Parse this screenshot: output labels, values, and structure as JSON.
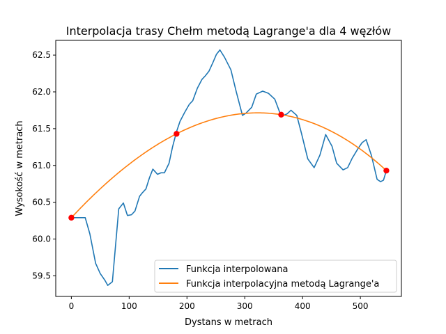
{
  "chart_data": {
    "type": "line",
    "title": "Interpolacja trasy Chełm metodą Lagrange'a dla 4 węzłów",
    "xlabel": "Dystans w metrach",
    "ylabel": "Wysokość w metrach",
    "xlim": [
      -27,
      571
    ],
    "ylim": [
      59.22,
      62.7
    ],
    "x_ticks": [
      0,
      100,
      200,
      300,
      400,
      500
    ],
    "y_ticks": [
      59.5,
      60.0,
      60.5,
      61.0,
      61.5,
      62.0,
      62.5
    ],
    "x_tick_labels": [
      "0",
      "100",
      "200",
      "300",
      "400",
      "500"
    ],
    "y_tick_labels": [
      "59.5",
      "60.0",
      "60.5",
      "61.0",
      "61.5",
      "62.0",
      "62.5"
    ],
    "grid": false,
    "legend_placement": "lower-right",
    "series": [
      {
        "name": "Funkcja interpolowana",
        "color": "#1f77b4",
        "points": [
          [
            0,
            60.29
          ],
          [
            12,
            60.29
          ],
          [
            24,
            60.29
          ],
          [
            32,
            60.07
          ],
          [
            42,
            59.67
          ],
          [
            50,
            59.53
          ],
          [
            58,
            59.44
          ],
          [
            63,
            59.37
          ],
          [
            71,
            59.42
          ],
          [
            82,
            60.41
          ],
          [
            90,
            60.49
          ],
          [
            97,
            60.32
          ],
          [
            104,
            60.33
          ],
          [
            110,
            60.38
          ],
          [
            118,
            60.58
          ],
          [
            123,
            60.63
          ],
          [
            129,
            60.68
          ],
          [
            135,
            60.83
          ],
          [
            141,
            60.95
          ],
          [
            149,
            60.88
          ],
          [
            155,
            60.9
          ],
          [
            161,
            60.9
          ],
          [
            169,
            61.03
          ],
          [
            175,
            61.25
          ],
          [
            182,
            61.46
          ],
          [
            188,
            61.6
          ],
          [
            196,
            61.72
          ],
          [
            204,
            61.83
          ],
          [
            210,
            61.88
          ],
          [
            218,
            62.05
          ],
          [
            226,
            62.17
          ],
          [
            232,
            62.22
          ],
          [
            238,
            62.28
          ],
          [
            245,
            62.4
          ],
          [
            251,
            62.51
          ],
          [
            257,
            62.57
          ],
          [
            265,
            62.47
          ],
          [
            276,
            62.3
          ],
          [
            285,
            62.01
          ],
          [
            296,
            61.68
          ],
          [
            302,
            61.71
          ],
          [
            312,
            61.79
          ],
          [
            320,
            61.97
          ],
          [
            331,
            62.01
          ],
          [
            341,
            61.98
          ],
          [
            352,
            61.9
          ],
          [
            362,
            61.69
          ],
          [
            367,
            61.68
          ],
          [
            373,
            61.7
          ],
          [
            380,
            61.75
          ],
          [
            390,
            61.68
          ],
          [
            398,
            61.44
          ],
          [
            409,
            61.09
          ],
          [
            420,
            60.97
          ],
          [
            430,
            61.14
          ],
          [
            440,
            61.42
          ],
          [
            451,
            61.26
          ],
          [
            459,
            61.03
          ],
          [
            470,
            60.94
          ],
          [
            478,
            60.97
          ],
          [
            486,
            61.1
          ],
          [
            496,
            61.23
          ],
          [
            503,
            61.31
          ],
          [
            510,
            61.35
          ],
          [
            519,
            61.14
          ],
          [
            529,
            60.81
          ],
          [
            535,
            60.78
          ],
          [
            540,
            60.8
          ],
          [
            545,
            60.93
          ]
        ]
      },
      {
        "name": "Funkcja interpolacyjna metodą Lagrange'a",
        "color": "#ff7f0e",
        "nodes": [
          [
            0,
            60.29
          ],
          [
            182,
            61.43
          ],
          [
            363,
            61.69
          ],
          [
            545,
            60.93
          ]
        ]
      }
    ],
    "nodes_color": "#ff0000"
  }
}
